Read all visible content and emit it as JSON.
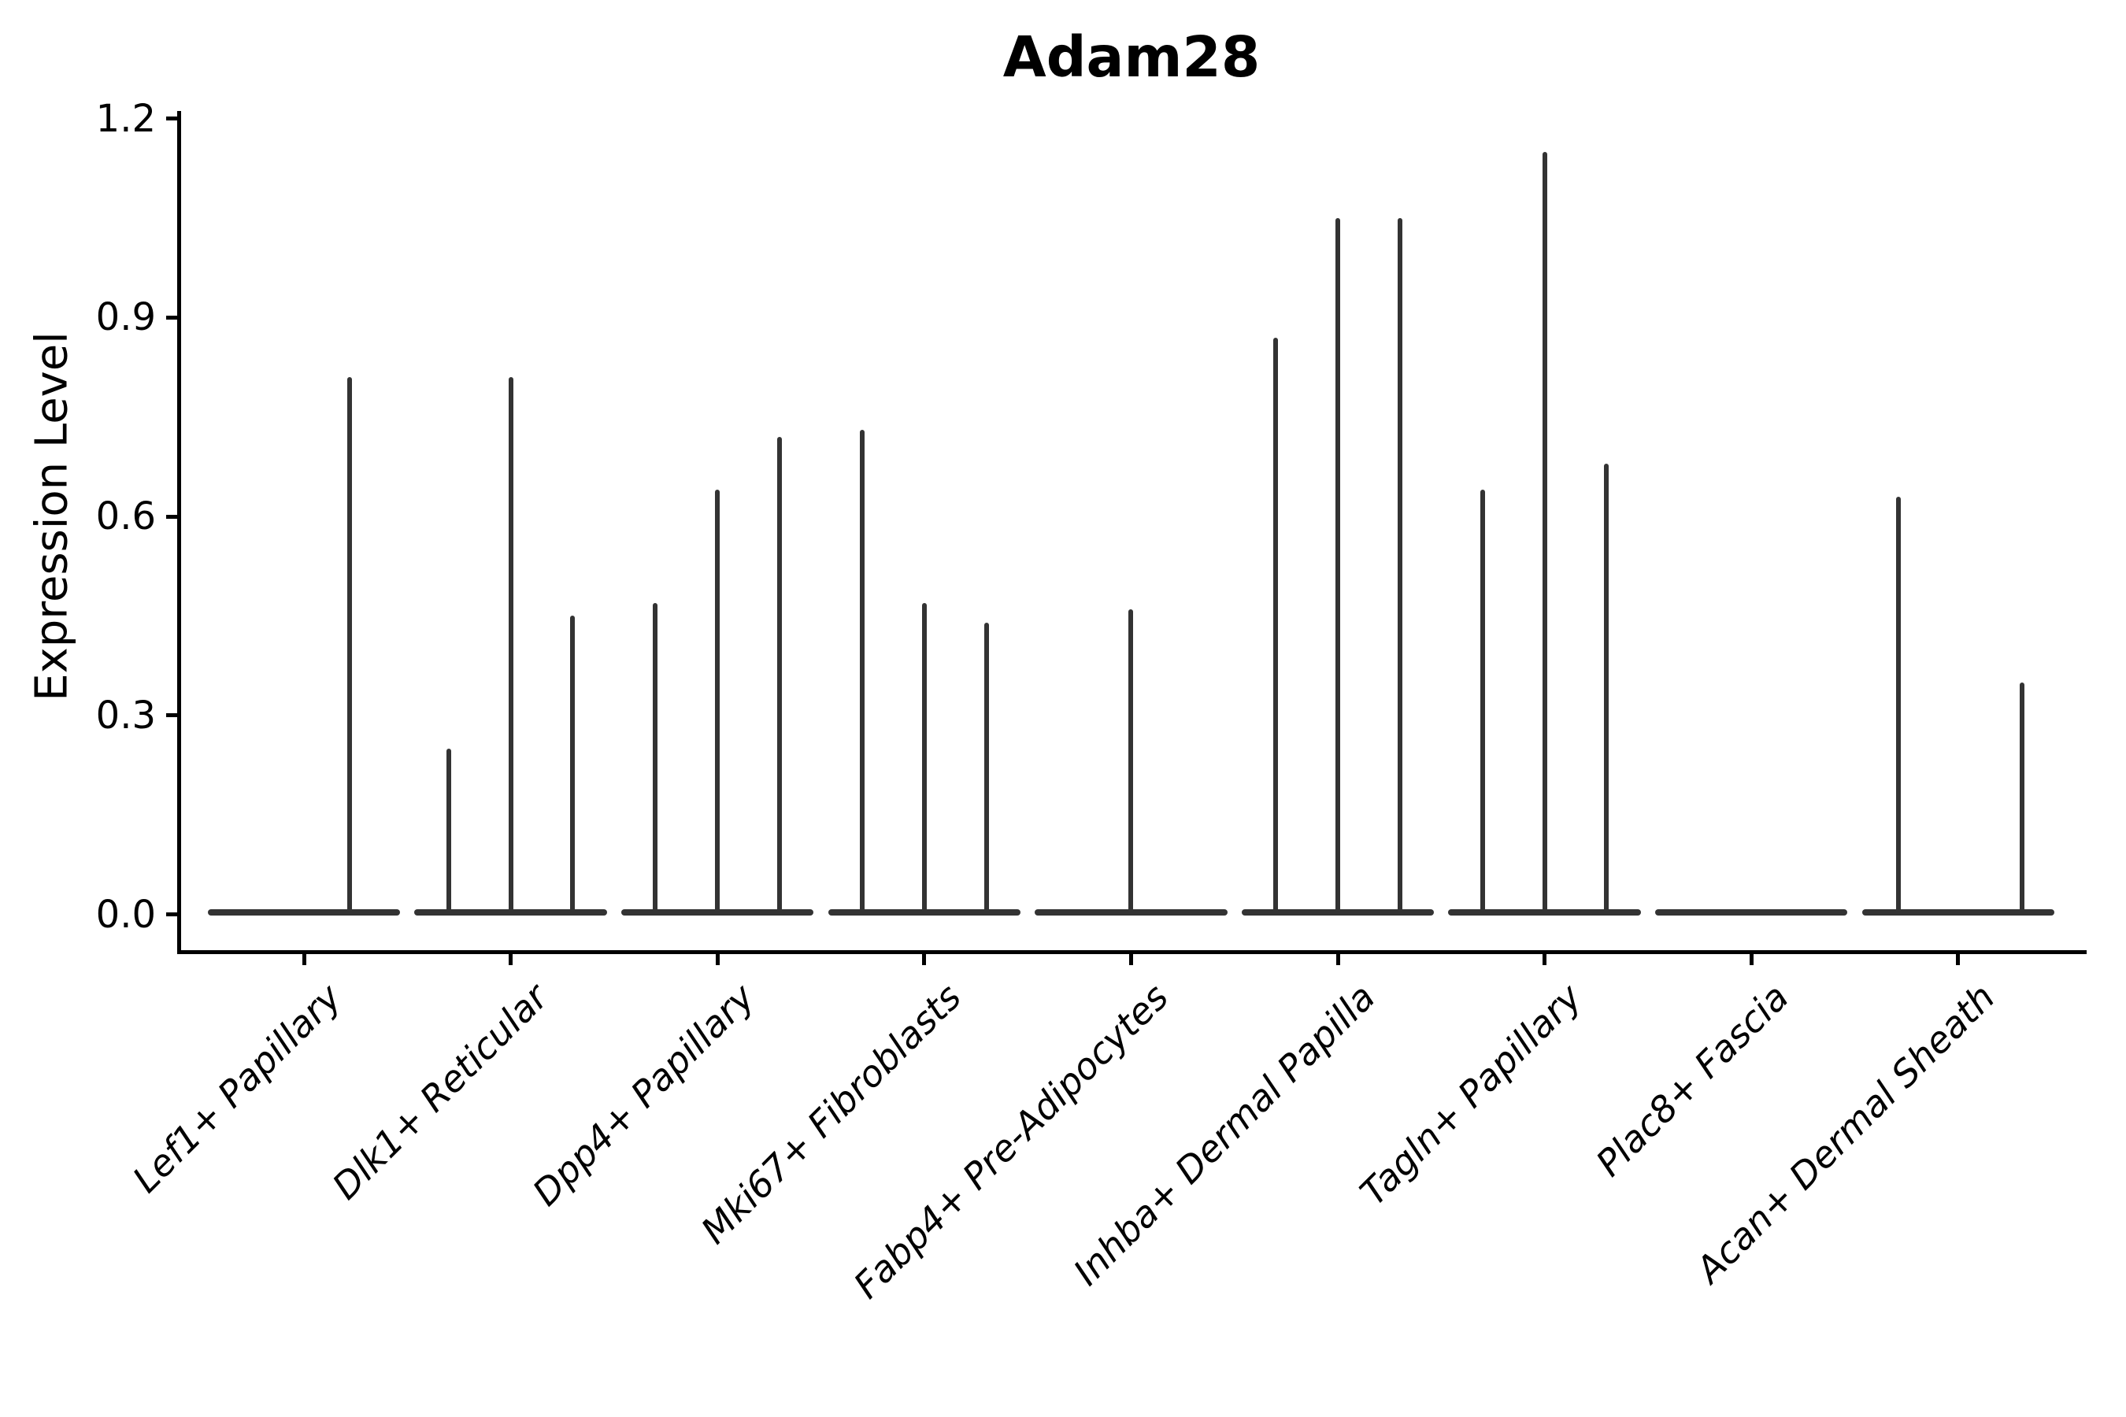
{
  "figure": {
    "title": "Adam28",
    "ylabel": "Expression Level"
  },
  "chart_data": {
    "type": "violin",
    "title": "Adam28",
    "xlabel": "",
    "ylabel": "Expression Level",
    "ylim": [
      0,
      1.213
    ],
    "grid": false,
    "legend": "none",
    "violin_color": "#333333",
    "axis_color": "#000000",
    "yticks": [
      {
        "value": 0.0,
        "label": "0.0"
      },
      {
        "value": 0.3,
        "label": "0.3"
      },
      {
        "value": 0.6,
        "label": "0.6"
      },
      {
        "value": 0.9,
        "label": "0.9"
      },
      {
        "value": 1.2,
        "label": "1.2"
      }
    ],
    "categories": [
      "Lef1+ Papillary",
      "Dlk1+ Reticular",
      "Dpp4+ Papillary",
      "Mki67+ Fibroblasts",
      "Fabp4+ Pre-Adipocytes",
      "Inhba+ Dermal Papilla",
      "Tagln+ Papillary",
      "Plac8+ Fascia",
      "Acan+ Dermal Sheath"
    ],
    "groups": [
      {
        "label": "Lef1+ Papillary",
        "body_max": 0.0,
        "spikes": [
          {
            "pos": 0.22,
            "max": 0.81
          }
        ]
      },
      {
        "label": "Dlk1+ Reticular",
        "body_max": 0.0,
        "spikes": [
          {
            "pos": -0.3,
            "max": 0.25
          },
          {
            "pos": 0.0,
            "max": 0.81
          },
          {
            "pos": 0.3,
            "max": 0.45
          }
        ]
      },
      {
        "label": "Dpp4+ Papillary",
        "body_max": 0.0,
        "spikes": [
          {
            "pos": -0.3,
            "max": 0.47
          },
          {
            "pos": 0.0,
            "max": 0.64
          },
          {
            "pos": 0.3,
            "max": 0.72
          }
        ]
      },
      {
        "label": "Mki67+ Fibroblasts",
        "body_max": 0.0,
        "spikes": [
          {
            "pos": -0.3,
            "max": 0.73
          },
          {
            "pos": 0.0,
            "max": 0.47
          },
          {
            "pos": 0.3,
            "max": 0.44
          }
        ]
      },
      {
        "label": "Fabp4+ Pre-Adipocytes",
        "body_max": 0.0,
        "spikes": [
          {
            "pos": 0.0,
            "max": 0.46
          }
        ]
      },
      {
        "label": "Inhba+ Dermal Papilla",
        "body_max": 0.0,
        "spikes": [
          {
            "pos": -0.3,
            "max": 0.87
          },
          {
            "pos": 0.0,
            "max": 1.05
          },
          {
            "pos": 0.3,
            "max": 1.05
          }
        ]
      },
      {
        "label": "Tagln+ Papillary",
        "body_max": 0.0,
        "spikes": [
          {
            "pos": -0.3,
            "max": 0.64
          },
          {
            "pos": 0.0,
            "max": 1.15
          },
          {
            "pos": 0.3,
            "max": 0.68
          }
        ]
      },
      {
        "label": "Plac8+ Fascia",
        "body_max": 0.0,
        "spikes": []
      },
      {
        "label": "Acan+ Dermal Sheath",
        "body_max": 0.0,
        "spikes": [
          {
            "pos": -0.29,
            "max": 0.63
          },
          {
            "pos": 0.31,
            "max": 0.35
          }
        ]
      }
    ]
  }
}
